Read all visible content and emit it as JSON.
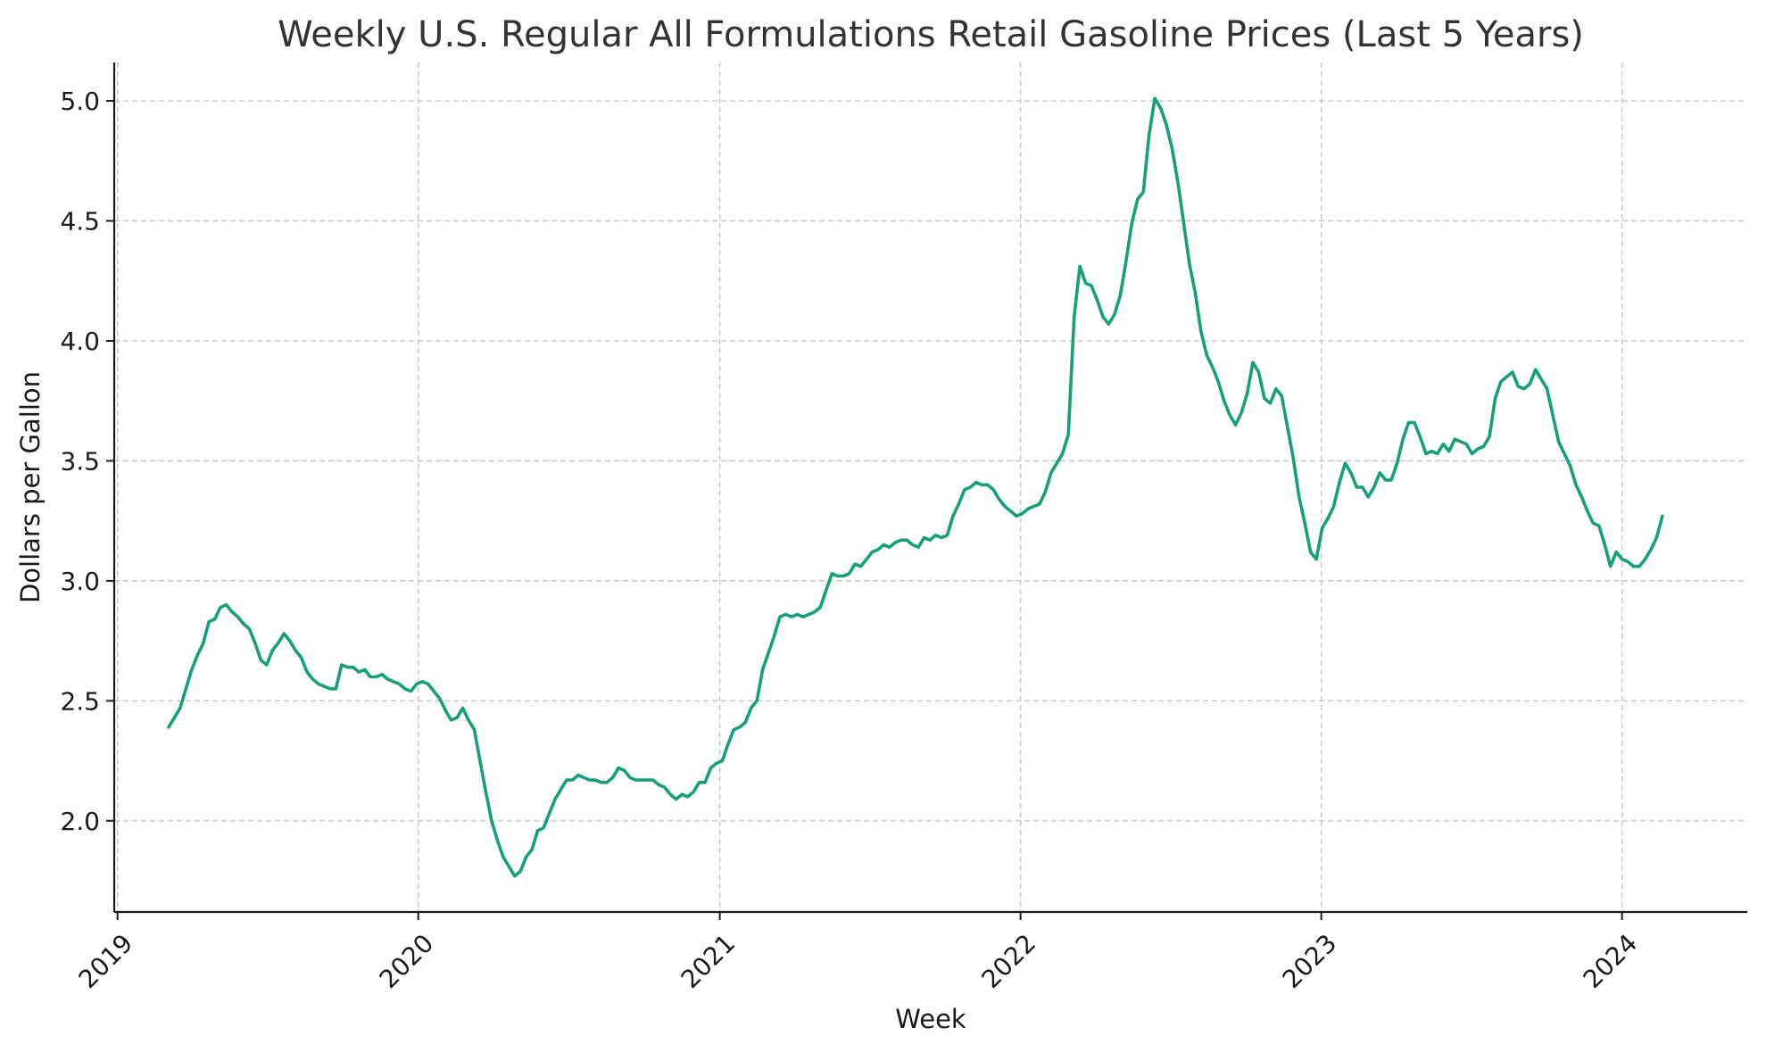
{
  "chart_data": {
    "type": "line",
    "title": "Weekly U.S. Regular All Formulations Retail Gasoline Prices (Last 5 Years)",
    "xlabel": "Week",
    "ylabel": "Dollars per Gallon",
    "x_ticks": [
      "2019",
      "2020",
      "2021",
      "2022",
      "2023",
      "2024"
    ],
    "y_ticks": [
      "2.0",
      "2.5",
      "3.0",
      "3.5",
      "4.0",
      "4.5",
      "5.0"
    ],
    "xlim": [
      "2018-12-28",
      "2024-06-01"
    ],
    "ylim": [
      1.62,
      5.16
    ],
    "grid": true,
    "line_color": "#16a07a",
    "series": [
      {
        "x": [
          "2019-03-04",
          "2019-03-11",
          "2019-03-18",
          "2019-03-25",
          "2019-04-01",
          "2019-04-08",
          "2019-04-15",
          "2019-04-22",
          "2019-04-29",
          "2019-05-06",
          "2019-05-13",
          "2019-05-20",
          "2019-05-27",
          "2019-06-03",
          "2019-06-10",
          "2019-06-17",
          "2019-06-24",
          "2019-07-01",
          "2019-07-08",
          "2019-07-15",
          "2019-07-22",
          "2019-07-29",
          "2019-08-05",
          "2019-08-12",
          "2019-08-19",
          "2019-08-26",
          "2019-09-02",
          "2019-09-09",
          "2019-09-16",
          "2019-09-23",
          "2019-09-30",
          "2019-10-07",
          "2019-10-14",
          "2019-10-21",
          "2019-10-28",
          "2019-11-04",
          "2019-11-11",
          "2019-11-18",
          "2019-11-25",
          "2019-12-02",
          "2019-12-09",
          "2019-12-16",
          "2019-12-23",
          "2019-12-30",
          "2020-01-06",
          "2020-01-13",
          "2020-01-20",
          "2020-01-27",
          "2020-02-03",
          "2020-02-10",
          "2020-02-17",
          "2020-02-24",
          "2020-03-02",
          "2020-03-09",
          "2020-03-16",
          "2020-03-23",
          "2020-03-30",
          "2020-04-06",
          "2020-04-13",
          "2020-04-20",
          "2020-04-27",
          "2020-05-04",
          "2020-05-11",
          "2020-05-18",
          "2020-05-25",
          "2020-06-01",
          "2020-06-08",
          "2020-06-15",
          "2020-06-22",
          "2020-06-29",
          "2020-07-06",
          "2020-07-13",
          "2020-07-20",
          "2020-07-27",
          "2020-08-03",
          "2020-08-10",
          "2020-08-17",
          "2020-08-24",
          "2020-08-31",
          "2020-09-07",
          "2020-09-14",
          "2020-09-21",
          "2020-09-28",
          "2020-10-05",
          "2020-10-12",
          "2020-10-19",
          "2020-10-26",
          "2020-11-02",
          "2020-11-09",
          "2020-11-16",
          "2020-11-23",
          "2020-11-30",
          "2020-12-07",
          "2020-12-14",
          "2020-12-21",
          "2020-12-28",
          "2021-01-04",
          "2021-01-11",
          "2021-01-18",
          "2021-01-25",
          "2021-02-01",
          "2021-02-08",
          "2021-02-15",
          "2021-02-22",
          "2021-03-01",
          "2021-03-08",
          "2021-03-15",
          "2021-03-22",
          "2021-03-29",
          "2021-04-05",
          "2021-04-12",
          "2021-04-19",
          "2021-04-26",
          "2021-05-03",
          "2021-05-10",
          "2021-05-17",
          "2021-05-24",
          "2021-05-31",
          "2021-06-07",
          "2021-06-14",
          "2021-06-21",
          "2021-06-28",
          "2021-07-05",
          "2021-07-12",
          "2021-07-19",
          "2021-07-26",
          "2021-08-02",
          "2021-08-09",
          "2021-08-16",
          "2021-08-23",
          "2021-08-30",
          "2021-09-06",
          "2021-09-13",
          "2021-09-20",
          "2021-09-27",
          "2021-10-04",
          "2021-10-11",
          "2021-10-18",
          "2021-10-25",
          "2021-11-01",
          "2021-11-08",
          "2021-11-15",
          "2021-11-22",
          "2021-11-29",
          "2021-12-06",
          "2021-12-13",
          "2021-12-20",
          "2021-12-27",
          "2022-01-03",
          "2022-01-10",
          "2022-01-17",
          "2022-01-24",
          "2022-01-31",
          "2022-02-07",
          "2022-02-14",
          "2022-02-21",
          "2022-02-28",
          "2022-03-07",
          "2022-03-14",
          "2022-03-21",
          "2022-03-28",
          "2022-04-04",
          "2022-04-11",
          "2022-04-18",
          "2022-04-25",
          "2022-05-02",
          "2022-05-09",
          "2022-05-16",
          "2022-05-23",
          "2022-05-30",
          "2022-06-06",
          "2022-06-13",
          "2022-06-20",
          "2022-06-27",
          "2022-07-04",
          "2022-07-11",
          "2022-07-18",
          "2022-07-25",
          "2022-08-01",
          "2022-08-08",
          "2022-08-15",
          "2022-08-22",
          "2022-08-29",
          "2022-09-05",
          "2022-09-12",
          "2022-09-19",
          "2022-09-26",
          "2022-10-03",
          "2022-10-10",
          "2022-10-17",
          "2022-10-24",
          "2022-10-31",
          "2022-11-07",
          "2022-11-14",
          "2022-11-21",
          "2022-11-28",
          "2022-12-05",
          "2022-12-12",
          "2022-12-19",
          "2022-12-26",
          "2023-01-02",
          "2023-01-09",
          "2023-01-16",
          "2023-01-23",
          "2023-01-30",
          "2023-02-06",
          "2023-02-13",
          "2023-02-20",
          "2023-02-27",
          "2023-03-06",
          "2023-03-13",
          "2023-03-20",
          "2023-03-27",
          "2023-04-03",
          "2023-04-10",
          "2023-04-17",
          "2023-04-24",
          "2023-05-01",
          "2023-05-08",
          "2023-05-15",
          "2023-05-22",
          "2023-05-29",
          "2023-06-05",
          "2023-06-12",
          "2023-06-19",
          "2023-06-26",
          "2023-07-03",
          "2023-07-10",
          "2023-07-17",
          "2023-07-24",
          "2023-07-31",
          "2023-08-07",
          "2023-08-14",
          "2023-08-21",
          "2023-08-28",
          "2023-09-04",
          "2023-09-11",
          "2023-09-18",
          "2023-09-25",
          "2023-10-02",
          "2023-10-09",
          "2023-10-16",
          "2023-10-23",
          "2023-10-30",
          "2023-11-06",
          "2023-11-13",
          "2023-11-20",
          "2023-11-27",
          "2023-12-04",
          "2023-12-11",
          "2023-12-18",
          "2023-12-25",
          "2024-01-01",
          "2024-01-08",
          "2024-01-15",
          "2024-01-22",
          "2024-01-29",
          "2024-02-05",
          "2024-02-12",
          "2024-02-19"
        ],
        "y": [
          2.39,
          2.43,
          2.47,
          2.55,
          2.63,
          2.69,
          2.74,
          2.83,
          2.84,
          2.89,
          2.9,
          2.87,
          2.85,
          2.82,
          2.8,
          2.74,
          2.67,
          2.65,
          2.71,
          2.74,
          2.78,
          2.75,
          2.71,
          2.68,
          2.62,
          2.59,
          2.57,
          2.56,
          2.55,
          2.55,
          2.65,
          2.64,
          2.64,
          2.62,
          2.63,
          2.6,
          2.6,
          2.61,
          2.59,
          2.58,
          2.57,
          2.55,
          2.54,
          2.57,
          2.58,
          2.57,
          2.54,
          2.51,
          2.46,
          2.42,
          2.43,
          2.47,
          2.42,
          2.38,
          2.25,
          2.12,
          2.0,
          1.92,
          1.85,
          1.81,
          1.77,
          1.79,
          1.85,
          1.88,
          1.96,
          1.97,
          2.03,
          2.09,
          2.13,
          2.17,
          2.17,
          2.19,
          2.18,
          2.17,
          2.17,
          2.16,
          2.16,
          2.18,
          2.22,
          2.21,
          2.18,
          2.17,
          2.17,
          2.17,
          2.17,
          2.15,
          2.14,
          2.11,
          2.09,
          2.11,
          2.1,
          2.12,
          2.16,
          2.16,
          2.22,
          2.24,
          2.25,
          2.32,
          2.38,
          2.39,
          2.41,
          2.47,
          2.5,
          2.63,
          2.7,
          2.77,
          2.85,
          2.86,
          2.85,
          2.86,
          2.85,
          2.86,
          2.87,
          2.89,
          2.96,
          3.03,
          3.02,
          3.02,
          3.03,
          3.07,
          3.06,
          3.09,
          3.12,
          3.13,
          3.15,
          3.14,
          3.16,
          3.17,
          3.17,
          3.15,
          3.14,
          3.18,
          3.17,
          3.19,
          3.18,
          3.19,
          3.27,
          3.32,
          3.38,
          3.39,
          3.41,
          3.4,
          3.4,
          3.38,
          3.34,
          3.31,
          3.29,
          3.27,
          3.28,
          3.3,
          3.31,
          3.32,
          3.37,
          3.45,
          3.49,
          3.53,
          3.61,
          4.1,
          4.31,
          4.24,
          4.23,
          4.17,
          4.1,
          4.07,
          4.11,
          4.19,
          4.33,
          4.49,
          4.59,
          4.62,
          4.86,
          5.01,
          4.97,
          4.9,
          4.8,
          4.66,
          4.49,
          4.32,
          4.2,
          4.04,
          3.94,
          3.89,
          3.83,
          3.75,
          3.69,
          3.65,
          3.7,
          3.78,
          3.91,
          3.87,
          3.76,
          3.74,
          3.8,
          3.77,
          3.64,
          3.51,
          3.35,
          3.24,
          3.12,
          3.09,
          3.22,
          3.26,
          3.31,
          3.41,
          3.49,
          3.45,
          3.39,
          3.39,
          3.35,
          3.39,
          3.45,
          3.42,
          3.42,
          3.49,
          3.59,
          3.66,
          3.66,
          3.6,
          3.53,
          3.54,
          3.53,
          3.57,
          3.54,
          3.59,
          3.58,
          3.57,
          3.53,
          3.55,
          3.56,
          3.6,
          3.76,
          3.83,
          3.85,
          3.87,
          3.81,
          3.8,
          3.82,
          3.88,
          3.84,
          3.8,
          3.69,
          3.58,
          3.53,
          3.48,
          3.4,
          3.35,
          3.29,
          3.24,
          3.23,
          3.15,
          3.06,
          3.12,
          3.09,
          3.08,
          3.06,
          3.06,
          3.09,
          3.13,
          3.18,
          3.27
        ]
      }
    ]
  }
}
